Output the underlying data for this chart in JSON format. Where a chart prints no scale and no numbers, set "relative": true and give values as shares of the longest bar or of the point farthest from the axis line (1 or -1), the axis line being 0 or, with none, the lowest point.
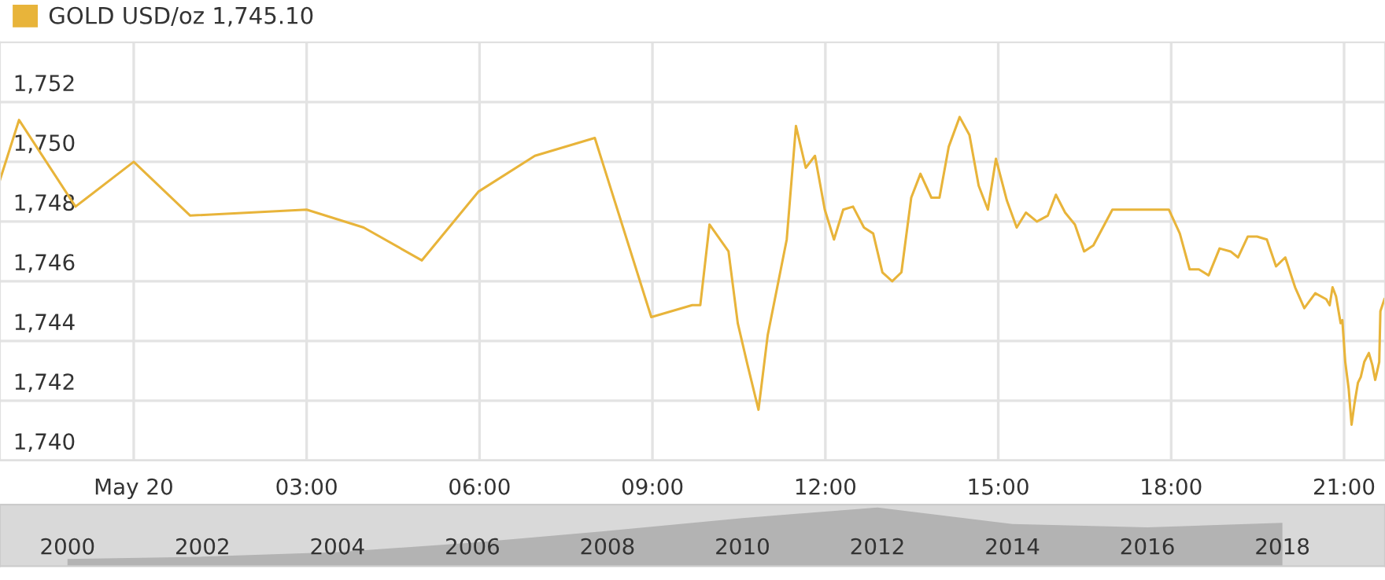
{
  "chart_data": [
    {
      "type": "line",
      "legend": "top left",
      "grid": true,
      "marker": "none",
      "line_style": "solid",
      "xlim": [
        -2.32,
        21.71
      ],
      "ylim": [
        1740,
        1754
      ],
      "xticks": [
        {
          "value": 0,
          "label": "May 20"
        },
        {
          "value": 3,
          "label": "03:00"
        },
        {
          "value": 6,
          "label": "06:00"
        },
        {
          "value": 9,
          "label": "09:00"
        },
        {
          "value": 12,
          "label": "12:00"
        },
        {
          "value": 15,
          "label": "15:00"
        },
        {
          "value": 18,
          "label": "18:00"
        },
        {
          "value": 21,
          "label": "21:00"
        }
      ],
      "yticks": [
        {
          "value": 1740,
          "label": "1,740"
        },
        {
          "value": 1742,
          "label": "1,742"
        },
        {
          "value": 1744,
          "label": "1,744"
        },
        {
          "value": 1746,
          "label": "1,746"
        },
        {
          "value": 1748,
          "label": "1,748"
        },
        {
          "value": 1750,
          "label": "1,750"
        },
        {
          "value": 1752,
          "label": "1,752"
        }
      ],
      "series": [
        {
          "name": "GOLD USD/oz 1,745.10",
          "color": "#e8b43a",
          "x": [
            -2.32,
            -1.99,
            -1.01,
            0,
            0.98,
            3.0,
            3.99,
            5.0,
            5.98,
            6.96,
            8.0,
            8.98,
            9.69,
            9.83,
            9.99,
            10.32,
            10.48,
            10.65,
            10.84,
            11.0,
            11.33,
            11.49,
            11.66,
            11.82,
            11.99,
            12.15,
            12.31,
            12.48,
            12.67,
            12.83,
            12.99,
            13.16,
            13.32,
            13.49,
            13.65,
            13.84,
            13.98,
            14.14,
            14.33,
            14.5,
            14.66,
            14.82,
            14.96,
            15.15,
            15.32,
            15.48,
            15.67,
            15.86,
            16.0,
            16.16,
            16.33,
            16.49,
            16.65,
            16.98,
            17.96,
            18.15,
            18.32,
            18.48,
            18.65,
            18.84,
            19.03,
            19.16,
            19.33,
            19.49,
            19.66,
            19.82,
            19.98,
            20.15,
            20.31,
            20.5,
            20.69,
            20.75,
            20.8,
            20.86,
            20.94,
            20.97,
            21.02,
            21.08,
            21.13,
            21.18,
            21.24,
            21.29,
            21.35,
            21.43,
            21.49,
            21.54,
            21.61,
            21.63,
            21.7
          ],
          "values": [
            1749.4,
            1751.4,
            1748.5,
            1750.0,
            1748.2,
            1748.4,
            1747.8,
            1746.7,
            1749.0,
            1750.2,
            1750.8,
            1744.8,
            1745.2,
            1745.2,
            1747.9,
            1747.0,
            1744.6,
            1743.2,
            1741.7,
            1744.2,
            1747.4,
            1751.2,
            1749.8,
            1750.2,
            1748.4,
            1747.4,
            1748.4,
            1748.5,
            1747.8,
            1747.6,
            1746.3,
            1746.0,
            1746.3,
            1748.8,
            1749.6,
            1748.8,
            1748.8,
            1750.5,
            1751.5,
            1750.9,
            1749.2,
            1748.4,
            1750.1,
            1748.7,
            1747.8,
            1748.3,
            1748.0,
            1748.2,
            1748.9,
            1748.3,
            1747.9,
            1747.0,
            1747.2,
            1748.4,
            1748.4,
            1747.6,
            1746.4,
            1746.4,
            1746.2,
            1747.1,
            1747.0,
            1746.8,
            1747.5,
            1747.5,
            1747.4,
            1746.5,
            1746.8,
            1745.8,
            1745.1,
            1745.6,
            1745.4,
            1745.2,
            1745.8,
            1745.5,
            1744.6,
            1744.7,
            1743.3,
            1742.4,
            1741.2,
            1741.9,
            1742.6,
            1742.8,
            1743.3,
            1743.6,
            1743.2,
            1742.7,
            1743.3,
            1745.0,
            1745.4
          ]
        }
      ]
    },
    {
      "type": "area",
      "relative": true,
      "categories": [
        "2000",
        "2002",
        "2004",
        "2006",
        "2008",
        "2010",
        "2012",
        "2014",
        "2016",
        "2018"
      ],
      "series": [
        {
          "color": "#b3b3b3",
          "values": [
            0.12,
            0.16,
            0.24,
            0.4,
            0.6,
            0.82,
            1.0,
            0.72,
            0.66,
            0.74
          ]
        }
      ]
    }
  ]
}
